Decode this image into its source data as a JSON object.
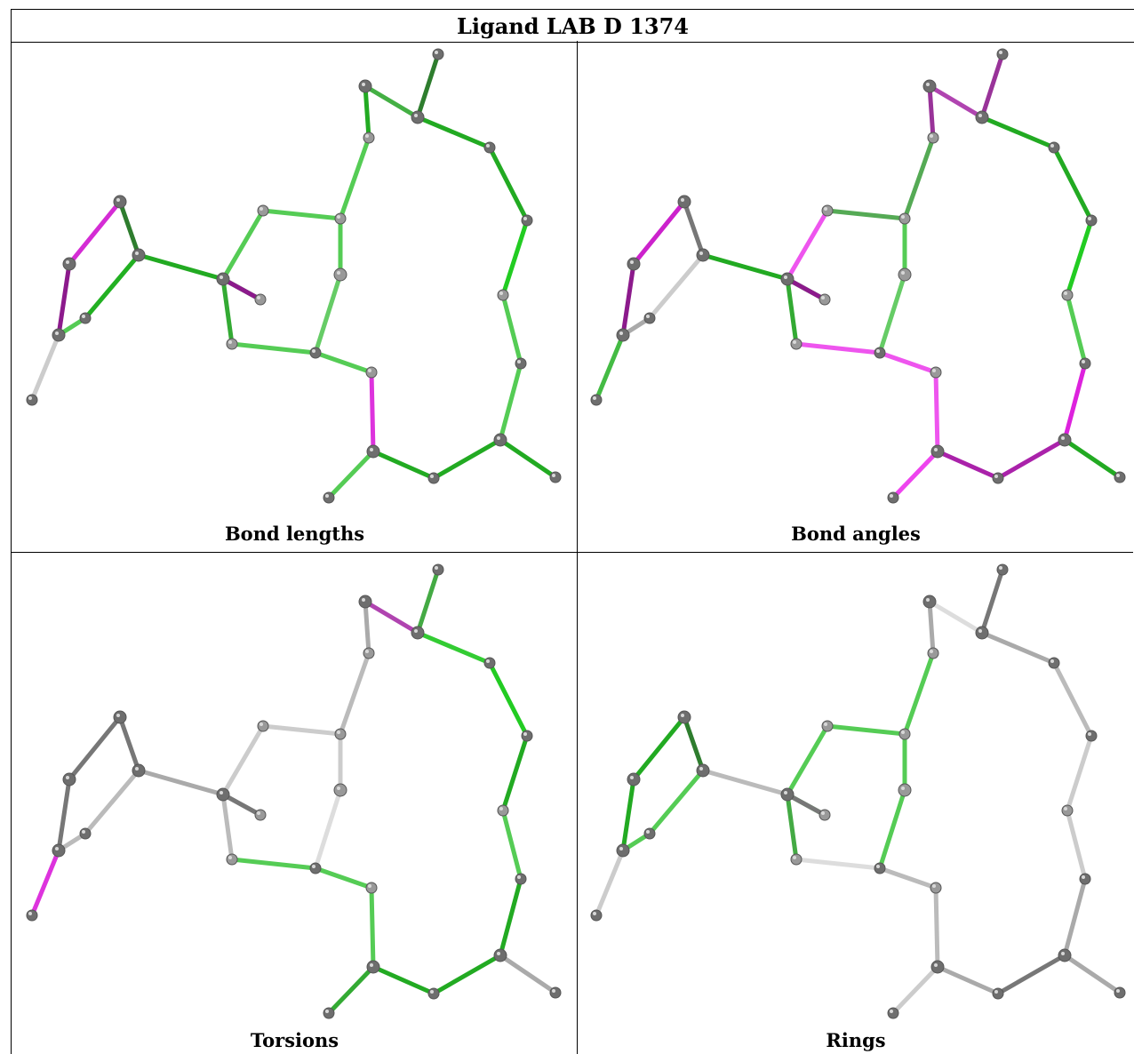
{
  "title": "Ligand LAB D 1374",
  "panels": [
    {
      "caption": "Bond lengths",
      "colors": {
        "0": "#d42cd4",
        "1": "#2e7d2e",
        "2": "#22b022",
        "3": "#8c1a8c",
        "4": "#55cc55",
        "5": "#22aa22",
        "6": "#cccccc",
        "7": "#55cc55",
        "8": "#33aa33",
        "9": "#55cc55",
        "10": "#8c1a8c",
        "11": "#33aa33",
        "12": "#55cc55",
        "13": "#55cc55",
        "14": "#66cc66",
        "15": "#55cc55",
        "16": "#55cc55",
        "17": "#dd33dd",
        "18": "#22aa22",
        "19": "#44b044",
        "20": "#2e7d2e",
        "21": "#22aa22",
        "22": "#22aa22",
        "23": "#22cc22",
        "24": "#55cc55",
        "25": "#55cc55",
        "26": "#22aa22",
        "27": "#22aa22",
        "28": "#55cc55",
        "29": "#22aa22",
        "30": "#22aa22",
        "31": "#22aa22",
        "32": "#44b044"
      }
    },
    {
      "caption": "Bond angles",
      "colors": {
        "0": "#cc22cc",
        "1": "#777777",
        "2": "#cccccc",
        "3": "#8c1a8c",
        "4": "#aaaaaa",
        "5": "#22aa22",
        "6": "#44bb44",
        "7": "#ee55ee",
        "8": "#55cc55",
        "9": "#55aa55",
        "10": "#8c1a8c",
        "11": "#33aa33",
        "12": "#55cc55",
        "13": "#55aa55",
        "14": "#66cc66",
        "15": "#ee55ee",
        "16": "#ee55ee",
        "17": "#ee55ee",
        "18": "#993399",
        "19": "#b044b0",
        "20": "#993399",
        "21": "#22aa22",
        "22": "#22aa22",
        "23": "#22cc22",
        "24": "#55cc55",
        "25": "#dd22dd",
        "26": "#aa22aa",
        "27": "#aa22aa",
        "28": "#ee44ee",
        "29": "#22aa22",
        "30": "#aa22aa",
        "31": "#22cc22",
        "32": "#ee55ee"
      }
    },
    {
      "caption": "Torsions",
      "colors": {
        "0": "#777777",
        "1": "#777777",
        "2": "#bbbbbb",
        "3": "#777777",
        "4": "#bbbbbb",
        "5": "#aaaaaa",
        "6": "#dd33dd",
        "7": "#cccccc",
        "8": "#aaaaaa",
        "9": "#cccccc",
        "10": "#777777",
        "11": "#bbbbbb",
        "12": "#cccccc",
        "13": "#bbbbbb",
        "14": "#dddddd",
        "15": "#55cc55",
        "16": "#55cc55",
        "17": "#55cc55",
        "18": "#aaaaaa",
        "19": "#b044b0",
        "20": "#44aa44",
        "21": "#33cc33",
        "22": "#22cc22",
        "23": "#22aa22",
        "24": "#55cc55",
        "25": "#22aa22",
        "26": "#22aa22",
        "27": "#22aa22",
        "28": "#33aa33",
        "29": "#aaaaaa",
        "30": "#777777",
        "31": "#777777",
        "32": "#cccccc"
      }
    },
    {
      "caption": "Rings",
      "colors": {
        "0": "#22aa22",
        "1": "#2e7d2e",
        "2": "#55cc55",
        "3": "#22aa22",
        "4": "#55cc55",
        "5": "#bbbbbb",
        "6": "#cccccc",
        "7": "#55cc55",
        "8": "#33aa33",
        "9": "#55cc55",
        "10": "#777777",
        "11": "#44aa44",
        "12": "#55cc55",
        "13": "#55cc55",
        "14": "#55cc55",
        "15": "#dddddd",
        "16": "#bbbbbb",
        "17": "#bbbbbb",
        "18": "#aaaaaa",
        "19": "#dddddd",
        "20": "#777777",
        "21": "#aaaaaa",
        "22": "#bbbbbb",
        "23": "#cccccc",
        "24": "#cccccc",
        "25": "#aaaaaa",
        "26": "#777777",
        "27": "#aaaaaa",
        "28": "#cccccc",
        "29": "#aaaaaa",
        "30": "#777777",
        "31": "#777777",
        "32": "#bbbbbb"
      }
    }
  ]
}
